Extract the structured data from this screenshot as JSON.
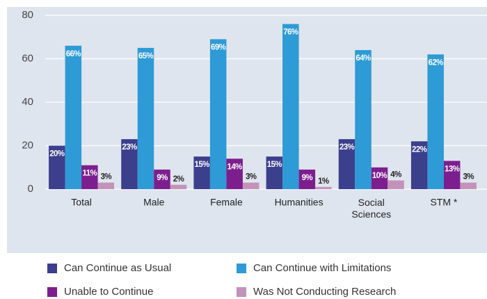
{
  "chart_data": {
    "type": "bar",
    "categories": [
      "Total",
      "Male",
      "Female",
      "Humanities",
      "Social Sciences",
      "STM *"
    ],
    "series": [
      {
        "name": "Can Continue as Usual",
        "color": "#3c3f8c",
        "values": [
          20,
          23,
          15,
          15,
          23,
          22
        ],
        "value_labels": [
          "20%",
          "23%",
          "15%",
          "15%",
          "23%",
          "22%"
        ]
      },
      {
        "name": "Can Continue with Limitations",
        "color": "#2e9ad6",
        "values": [
          66,
          65,
          69,
          76,
          64,
          62
        ],
        "value_labels": [
          "66%",
          "65%",
          "69%",
          "76%",
          "64%",
          "62%"
        ]
      },
      {
        "name": "Unable to Continue",
        "color": "#7d1e8e",
        "values": [
          11,
          9,
          14,
          9,
          10,
          13
        ],
        "value_labels": [
          "11%",
          "9%",
          "14%",
          "9%",
          "10%",
          "13%"
        ]
      },
      {
        "name": "Was Not Conducting Research",
        "color": "#c392ba",
        "values": [
          3,
          2,
          3,
          1,
          4,
          3
        ],
        "value_labels": [
          "3%",
          "2%",
          "3%",
          "1%",
          "4%",
          "3%"
        ]
      }
    ],
    "ylim": [
      0,
      80
    ],
    "yticks": [
      0,
      20,
      40,
      60,
      80
    ],
    "grid": true
  }
}
